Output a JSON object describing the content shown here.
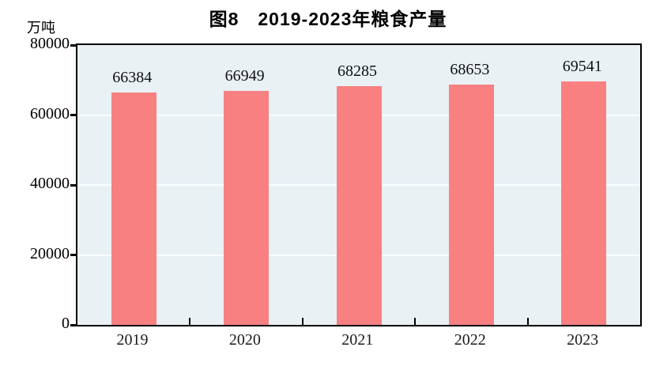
{
  "chart_data": {
    "type": "bar",
    "title": "图8　2019-2023年粮食产量",
    "unit_label": "万吨",
    "categories": [
      "2019",
      "2020",
      "2021",
      "2022",
      "2023"
    ],
    "values": [
      66384,
      66949,
      68285,
      68653,
      69541
    ],
    "value_labels": [
      "66384",
      "66949",
      "68285",
      "68653",
      "69541"
    ],
    "ylabel": "万吨",
    "xlabel": "",
    "ylim": [
      0,
      80000
    ],
    "yticks": [
      0,
      20000,
      40000,
      60000,
      80000
    ],
    "ytick_labels": [
      "0",
      "20000",
      "40000",
      "60000",
      "80000"
    ],
    "grid": "horizontal white gridlines at 20000/40000/60000",
    "legend_position": "none",
    "colors": {
      "bar": "#f88080",
      "plot_background": "#e9f1f5",
      "gridline": "#fbfdfd",
      "axis": "#000000",
      "text": "#000000"
    }
  }
}
